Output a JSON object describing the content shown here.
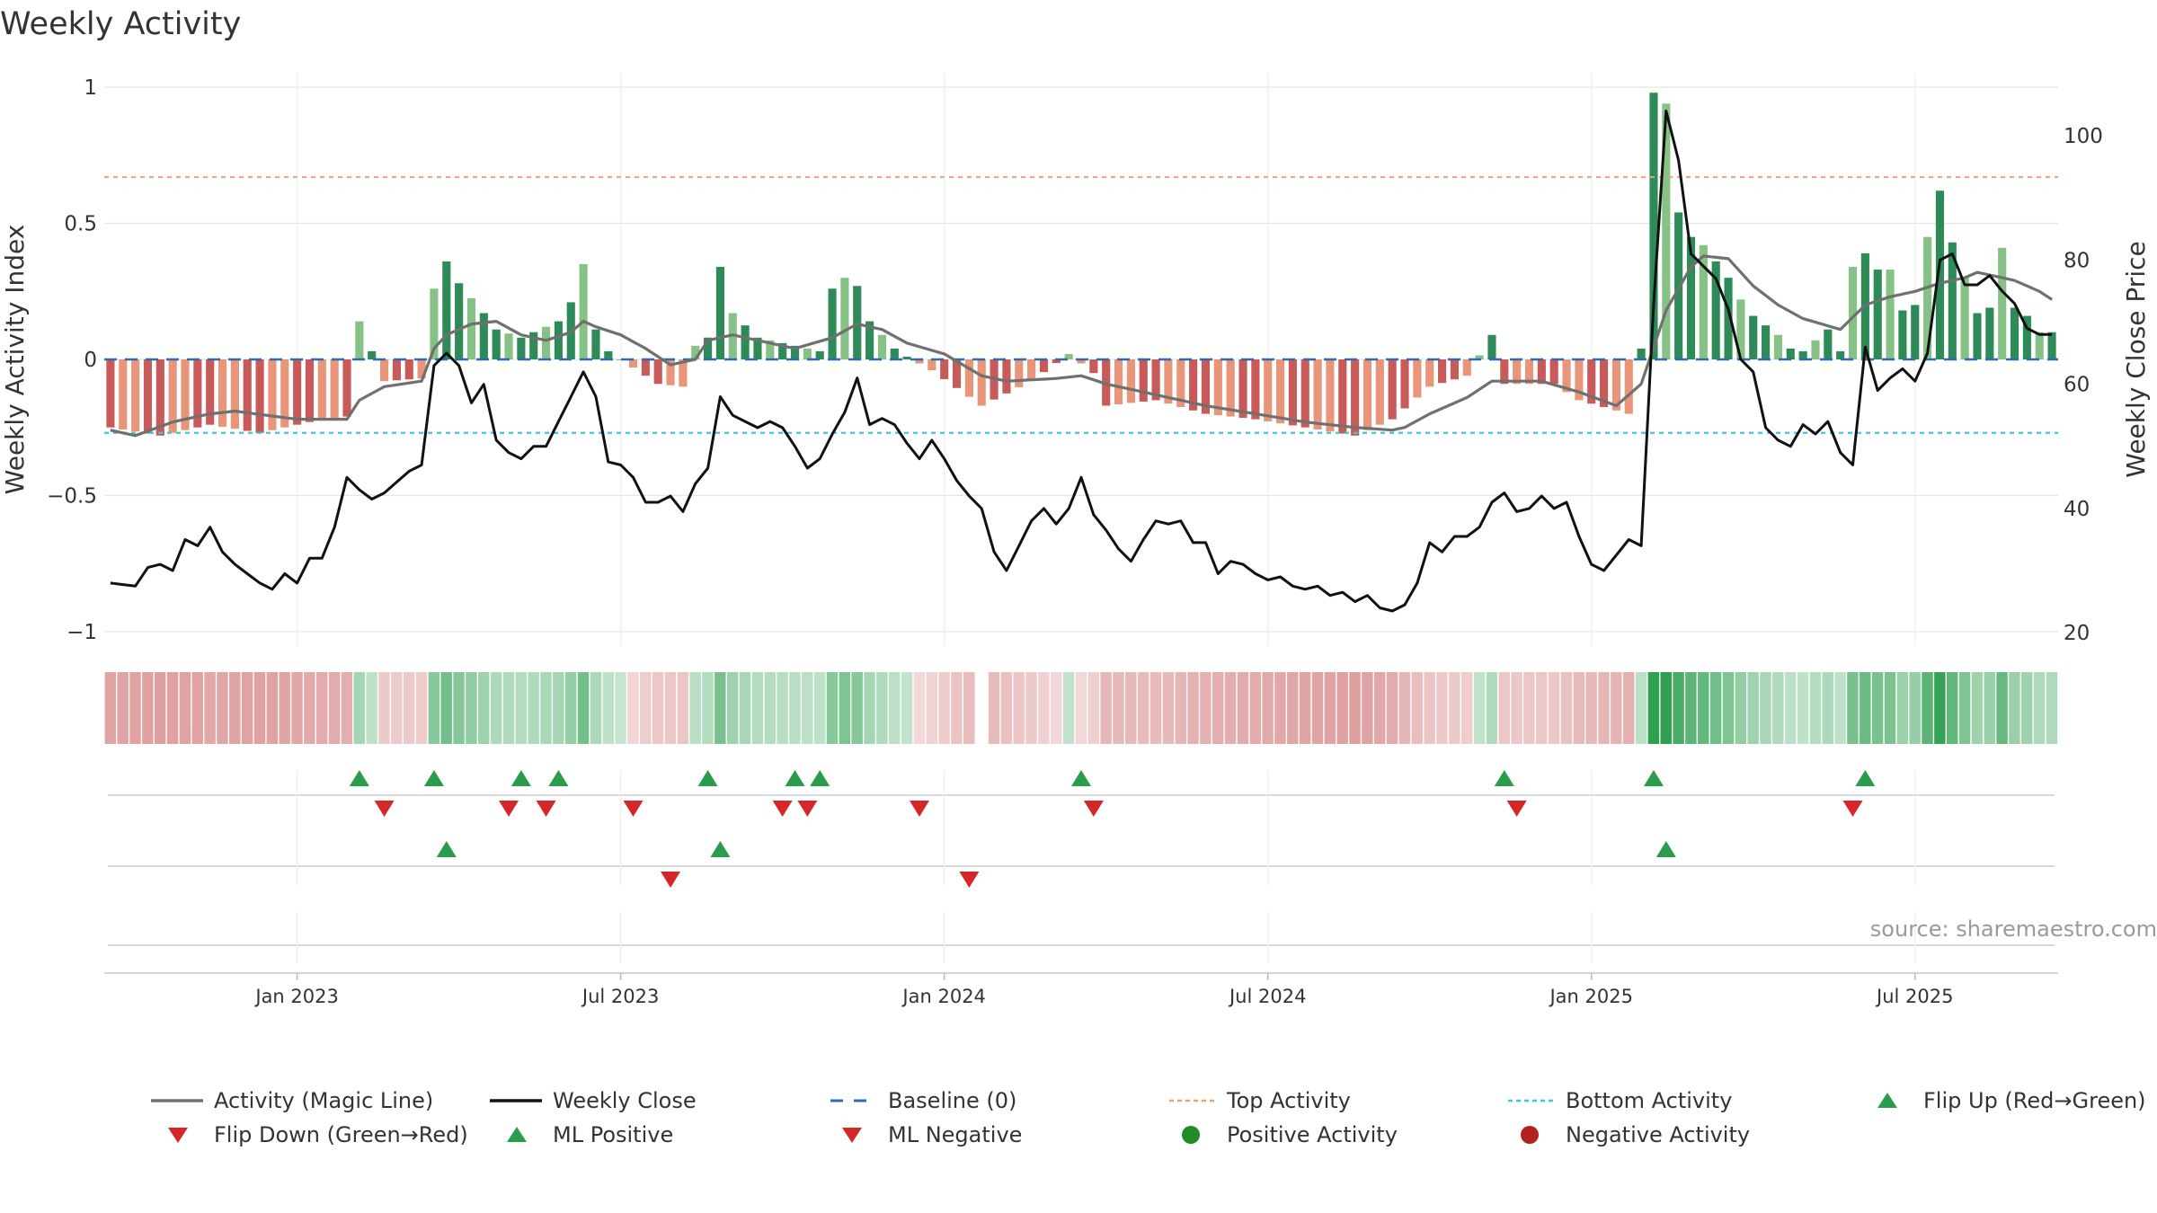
{
  "title": "Weekly Activity",
  "source": "source: sharemaestro.com",
  "colors": {
    "bar_pos_dark": "#2e8b57",
    "bar_pos_light": "#86c285",
    "bar_neg_dark": "#c85a5a",
    "bar_neg_light": "#e8957a",
    "magic_line": "#707070",
    "close_line": "#111111",
    "baseline": "#2a6db5",
    "top_line": "#f0a070",
    "bottom_line": "#3cc8d8",
    "flip_up": "#2a9d4a",
    "flip_down": "#d62728",
    "grid": "#e6e6e6"
  },
  "chart_data": {
    "type": "bar",
    "title": "Weekly Activity",
    "y_left": {
      "label": "Weekly Activity Index",
      "lim": [
        -1.05,
        1.05
      ],
      "ticks": [
        1,
        0.5,
        0,
        -0.5,
        -1
      ],
      "tick_labels": [
        "1",
        "0.5",
        "0",
        "−0.5",
        "−1"
      ]
    },
    "y_right": {
      "label": "Weekly Close Price",
      "lim": [
        18,
        110
      ],
      "ticks": [
        100,
        80,
        60,
        40,
        20
      ],
      "tick_labels": [
        "100",
        "80",
        "60",
        "40",
        "20"
      ]
    },
    "x_ticks": [
      {
        "week": 15,
        "label": "Jan 2023"
      },
      {
        "week": 41,
        "label": "Jul 2023"
      },
      {
        "week": 67,
        "label": "Jan 2024"
      },
      {
        "week": 93,
        "label": "Jul 2024"
      },
      {
        "week": 119,
        "label": "Jan 2025"
      },
      {
        "week": 145,
        "label": "Jul 2025"
      }
    ],
    "weeks": 157,
    "top_activity": 0.67,
    "bottom_activity": -0.27,
    "baseline": 0,
    "activity_keys": [
      [
        0,
        -0.25
      ],
      [
        4,
        -0.28
      ],
      [
        8,
        -0.24
      ],
      [
        12,
        -0.27
      ],
      [
        16,
        -0.23
      ],
      [
        19,
        -0.21
      ],
      [
        20,
        0.14
      ],
      [
        22,
        -0.08
      ],
      [
        25,
        -0.07
      ],
      [
        26,
        0.26
      ],
      [
        27,
        0.36
      ],
      [
        28,
        0.28
      ],
      [
        30,
        0.17
      ],
      [
        31,
        0.11
      ],
      [
        33,
        0.08
      ],
      [
        36,
        0.14
      ],
      [
        37,
        0.21
      ],
      [
        38,
        0.35
      ],
      [
        39,
        0.11
      ],
      [
        40,
        0.03
      ],
      [
        42,
        -0.03
      ],
      [
        44,
        -0.09
      ],
      [
        46,
        -0.1
      ],
      [
        47,
        0.05
      ],
      [
        48,
        0.08
      ],
      [
        49,
        0.34
      ],
      [
        50,
        0.17
      ],
      [
        52,
        0.08
      ],
      [
        55,
        0.05
      ],
      [
        57,
        0.03
      ],
      [
        58,
        0.26
      ],
      [
        59,
        0.3
      ],
      [
        60,
        0.27
      ],
      [
        61,
        0.14
      ],
      [
        63,
        0.04
      ],
      [
        64,
        0.01
      ],
      [
        66,
        -0.04
      ],
      [
        70,
        -0.17
      ],
      [
        74,
        -0.08
      ],
      [
        77,
        0.02
      ],
      [
        79,
        -0.05
      ],
      [
        80,
        -0.17
      ],
      [
        84,
        -0.15
      ],
      [
        88,
        -0.2
      ],
      [
        92,
        -0.22
      ],
      [
        96,
        -0.25
      ],
      [
        100,
        -0.28
      ],
      [
        103,
        -0.22
      ],
      [
        106,
        -0.1
      ],
      [
        109,
        -0.06
      ],
      [
        111,
        0.09
      ],
      [
        112,
        -0.09
      ],
      [
        116,
        -0.09
      ],
      [
        118,
        -0.15
      ],
      [
        122,
        -0.2
      ],
      [
        123,
        0.04
      ],
      [
        124,
        0.98
      ],
      [
        125,
        0.94
      ],
      [
        126,
        0.54
      ],
      [
        127,
        0.45
      ],
      [
        128,
        0.42
      ],
      [
        130,
        0.3
      ],
      [
        131,
        0.22
      ],
      [
        132,
        0.16
      ],
      [
        134,
        0.09
      ],
      [
        135,
        0.04
      ],
      [
        136,
        0.03
      ],
      [
        138,
        0.11
      ],
      [
        139,
        0.03
      ],
      [
        140,
        0.34
      ],
      [
        141,
        0.39
      ],
      [
        142,
        0.33
      ],
      [
        143,
        0.33
      ],
      [
        144,
        0.18
      ],
      [
        145,
        0.2
      ],
      [
        146,
        0.45
      ],
      [
        147,
        0.62
      ],
      [
        148,
        0.43
      ],
      [
        149,
        0.3
      ],
      [
        150,
        0.17
      ],
      [
        151,
        0.19
      ],
      [
        152,
        0.41
      ],
      [
        153,
        0.19
      ],
      [
        154,
        0.16
      ],
      [
        155,
        0.1
      ],
      [
        156,
        0.1
      ]
    ],
    "magic_keys": [
      [
        0,
        -0.26
      ],
      [
        2,
        -0.28
      ],
      [
        5,
        -0.23
      ],
      [
        8,
        -0.2
      ],
      [
        10,
        -0.19
      ],
      [
        15,
        -0.22
      ],
      [
        19,
        -0.22
      ],
      [
        20,
        -0.15
      ],
      [
        22,
        -0.1
      ],
      [
        25,
        -0.08
      ],
      [
        26,
        0.04
      ],
      [
        27,
        0.09
      ],
      [
        29,
        0.13
      ],
      [
        31,
        0.14
      ],
      [
        33,
        0.09
      ],
      [
        35,
        0.07
      ],
      [
        37,
        0.1
      ],
      [
        38,
        0.14
      ],
      [
        39,
        0.12
      ],
      [
        41,
        0.09
      ],
      [
        43,
        0.04
      ],
      [
        45,
        -0.02
      ],
      [
        47,
        0.0
      ],
      [
        48,
        0.07
      ],
      [
        50,
        0.09
      ],
      [
        53,
        0.06
      ],
      [
        55,
        0.04
      ],
      [
        58,
        0.08
      ],
      [
        60,
        0.13
      ],
      [
        62,
        0.11
      ],
      [
        64,
        0.06
      ],
      [
        67,
        0.02
      ],
      [
        70,
        -0.06
      ],
      [
        72,
        -0.08
      ],
      [
        76,
        -0.07
      ],
      [
        78,
        -0.06
      ],
      [
        80,
        -0.09
      ],
      [
        84,
        -0.13
      ],
      [
        88,
        -0.17
      ],
      [
        92,
        -0.2
      ],
      [
        96,
        -0.23
      ],
      [
        100,
        -0.25
      ],
      [
        103,
        -0.26
      ],
      [
        104,
        -0.25
      ],
      [
        106,
        -0.2
      ],
      [
        109,
        -0.14
      ],
      [
        111,
        -0.08
      ],
      [
        115,
        -0.08
      ],
      [
        118,
        -0.12
      ],
      [
        121,
        -0.17
      ],
      [
        123,
        -0.09
      ],
      [
        125,
        0.18
      ],
      [
        127,
        0.34
      ],
      [
        128,
        0.38
      ],
      [
        130,
        0.37
      ],
      [
        132,
        0.27
      ],
      [
        134,
        0.2
      ],
      [
        136,
        0.15
      ],
      [
        139,
        0.11
      ],
      [
        141,
        0.2
      ],
      [
        143,
        0.23
      ],
      [
        145,
        0.25
      ],
      [
        147,
        0.28
      ],
      [
        149,
        0.3
      ],
      [
        150,
        0.32
      ],
      [
        153,
        0.29
      ],
      [
        155,
        0.25
      ],
      [
        156,
        0.22
      ]
    ],
    "close_keys": [
      [
        0,
        28
      ],
      [
        2,
        27.5
      ],
      [
        3,
        30.5
      ],
      [
        4,
        31
      ],
      [
        5,
        30
      ],
      [
        6,
        35
      ],
      [
        7,
        34
      ],
      [
        8,
        37
      ],
      [
        9,
        33
      ],
      [
        10,
        31
      ],
      [
        12,
        28
      ],
      [
        13,
        27
      ],
      [
        14,
        29.5
      ],
      [
        15,
        28
      ],
      [
        16,
        32
      ],
      [
        17,
        32
      ],
      [
        18,
        37
      ],
      [
        19,
        45
      ],
      [
        20,
        43
      ],
      [
        21,
        41.5
      ],
      [
        22,
        42.5
      ],
      [
        24,
        46
      ],
      [
        25,
        47
      ],
      [
        26,
        63
      ],
      [
        27,
        65
      ],
      [
        28,
        63
      ],
      [
        29,
        57
      ],
      [
        30,
        60
      ],
      [
        31,
        51
      ],
      [
        32,
        49
      ],
      [
        33,
        48
      ],
      [
        34,
        50
      ],
      [
        35,
        50
      ],
      [
        36,
        54
      ],
      [
        37,
        58
      ],
      [
        38,
        62
      ],
      [
        39,
        58
      ],
      [
        40,
        47.5
      ],
      [
        41,
        47
      ],
      [
        42,
        45
      ],
      [
        43,
        41
      ],
      [
        44,
        41
      ],
      [
        45,
        42
      ],
      [
        46,
        39.5
      ],
      [
        47,
        44
      ],
      [
        48,
        46.5
      ],
      [
        49,
        58
      ],
      [
        50,
        55
      ],
      [
        51,
        54
      ],
      [
        52,
        53
      ],
      [
        53,
        54
      ],
      [
        54,
        53
      ],
      [
        55,
        50
      ],
      [
        56,
        46.5
      ],
      [
        57,
        48
      ],
      [
        58,
        52
      ],
      [
        59,
        55.5
      ],
      [
        60,
        61
      ],
      [
        61,
        53.5
      ],
      [
        62,
        54.5
      ],
      [
        63,
        53.5
      ],
      [
        64,
        50.5
      ],
      [
        65,
        48
      ],
      [
        66,
        51
      ],
      [
        67,
        48
      ],
      [
        68,
        44.5
      ],
      [
        69,
        42
      ],
      [
        70,
        40
      ],
      [
        71,
        33
      ],
      [
        72,
        30
      ],
      [
        73,
        34
      ],
      [
        74,
        38
      ],
      [
        75,
        40
      ],
      [
        76,
        37.5
      ],
      [
        77,
        40
      ],
      [
        78,
        45
      ],
      [
        79,
        39
      ],
      [
        80,
        36.5
      ],
      [
        81,
        33.5
      ],
      [
        82,
        31.5
      ],
      [
        83,
        35
      ],
      [
        84,
        38
      ],
      [
        85,
        37.5
      ],
      [
        86,
        38
      ],
      [
        87,
        34.5
      ],
      [
        88,
        34.5
      ],
      [
        89,
        29.5
      ],
      [
        90,
        31.5
      ],
      [
        91,
        31
      ],
      [
        92,
        29.5
      ],
      [
        93,
        28.5
      ],
      [
        94,
        29
      ],
      [
        95,
        27.5
      ],
      [
        96,
        27
      ],
      [
        97,
        27.5
      ],
      [
        98,
        26
      ],
      [
        99,
        26.5
      ],
      [
        100,
        25
      ],
      [
        101,
        26
      ],
      [
        102,
        24
      ],
      [
        103,
        23.5
      ],
      [
        104,
        24.5
      ],
      [
        105,
        28
      ],
      [
        106,
        34.5
      ],
      [
        107,
        33
      ],
      [
        108,
        35.5
      ],
      [
        109,
        35.5
      ],
      [
        110,
        37
      ],
      [
        111,
        41
      ],
      [
        112,
        42.5
      ],
      [
        113,
        39.5
      ],
      [
        114,
        40
      ],
      [
        115,
        42
      ],
      [
        116,
        40
      ],
      [
        117,
        41
      ],
      [
        118,
        35.5
      ],
      [
        119,
        31
      ],
      [
        120,
        30
      ],
      [
        121,
        32.5
      ],
      [
        122,
        35
      ],
      [
        123,
        34
      ],
      [
        124,
        73
      ],
      [
        125,
        104
      ],
      [
        126,
        96
      ],
      [
        127,
        81
      ],
      [
        128,
        79
      ],
      [
        129,
        77
      ],
      [
        130,
        72
      ],
      [
        131,
        64
      ],
      [
        132,
        62
      ],
      [
        133,
        53
      ],
      [
        134,
        51
      ],
      [
        135,
        50
      ],
      [
        136,
        53.5
      ],
      [
        137,
        52
      ],
      [
        138,
        54
      ],
      [
        139,
        49
      ],
      [
        140,
        47
      ],
      [
        141,
        66
      ],
      [
        142,
        59
      ],
      [
        143,
        61
      ],
      [
        144,
        62.5
      ],
      [
        145,
        60.5
      ],
      [
        146,
        65
      ],
      [
        147,
        80
      ],
      [
        148,
        81
      ],
      [
        149,
        76
      ],
      [
        150,
        76
      ],
      [
        151,
        77.5
      ],
      [
        152,
        75
      ],
      [
        153,
        73
      ],
      [
        154,
        69
      ],
      [
        155,
        68
      ]
    ],
    "close_keys_end": [
      [
        156,
        68
      ]
    ],
    "flip_up_weeks": [
      20,
      26,
      33,
      36,
      48,
      55,
      57,
      78,
      112,
      124,
      141
    ],
    "flip_down_weeks": [
      22,
      32,
      35,
      42,
      54,
      56,
      65,
      79,
      113,
      140
    ],
    "ml_positive_weeks": [
      27,
      49,
      125
    ],
    "ml_negative_weeks": [
      45,
      69
    ],
    "legend": [
      {
        "label": "Activity (Magic Line)",
        "kind": "line",
        "color": "#707070"
      },
      {
        "label": "Weekly Close",
        "kind": "line",
        "color": "#111111"
      },
      {
        "label": "Baseline (0)",
        "kind": "dash",
        "color": "#2a6db5"
      },
      {
        "label": "Top Activity",
        "kind": "dot",
        "color": "#f0a070"
      },
      {
        "label": "Bottom Activity",
        "kind": "dot",
        "color": "#3cc8d8"
      },
      {
        "label": "Flip Up (Red→Green)",
        "kind": "tri-up",
        "color": "#2a9d4a"
      },
      {
        "label": "Flip Down (Green→Red)",
        "kind": "tri-down",
        "color": "#d62728"
      },
      {
        "label": "ML Positive",
        "kind": "tri-up",
        "color": "#2a9d4a"
      },
      {
        "label": "ML Negative",
        "kind": "tri-down",
        "color": "#d62728"
      },
      {
        "label": "Positive Activity",
        "kind": "circle",
        "color": "#238b23"
      },
      {
        "label": "Negative Activity",
        "kind": "circle",
        "color": "#b22222"
      }
    ]
  }
}
